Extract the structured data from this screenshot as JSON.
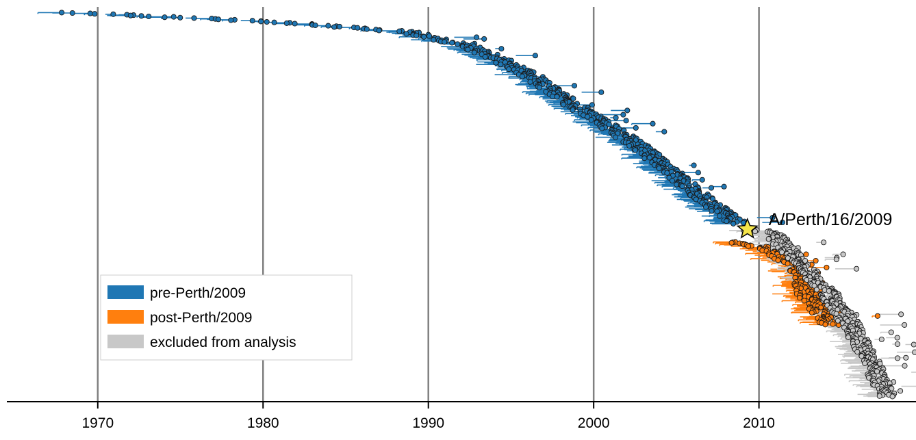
{
  "chart_data": {
    "type": "phylogenetic-tree",
    "xlim": [
      1964.5,
      2019.5
    ],
    "x_ticks": [
      1970,
      1980,
      1990,
      2000,
      2010
    ],
    "x_tick_labels": [
      "1970",
      "1980",
      "1990",
      "2000",
      "2010"
    ],
    "grid": "vertical",
    "legend_position": "lower-left",
    "legend": [
      {
        "name": "pre-Perth/2009",
        "color": "#1f77b4"
      },
      {
        "name": "post-Perth/2009",
        "color": "#ff7f0e"
      },
      {
        "name": "excluded from analysis",
        "color": "#c8c8c8"
      }
    ],
    "annotation": {
      "text": "A/Perth/16/2009",
      "x": 2009.3,
      "marker": "star",
      "color": "#f5e54a"
    },
    "series": [
      {
        "group": "pre-Perth/2009",
        "color": "#1f77b4",
        "trunk": [
          [
            1968.0,
            0.01
          ],
          [
            1980.0,
            0.04
          ],
          [
            1988.5,
            0.075
          ],
          [
            1992.5,
            0.13
          ],
          [
            1995.5,
            0.21
          ],
          [
            1998.5,
            0.32
          ],
          [
            2002.5,
            0.46
          ],
          [
            2006.0,
            0.62
          ],
          [
            2008.5,
            0.72
          ]
        ]
      },
      {
        "group": "post-Perth/2009",
        "color": "#ff7f0e",
        "trunk": [
          [
            2008.0,
            0.78
          ],
          [
            2010.0,
            0.8
          ],
          [
            2012.0,
            0.86
          ],
          [
            2012.5,
            0.95
          ],
          [
            2014.0,
            1.06
          ]
        ]
      },
      {
        "group": "excluded from analysis",
        "color": "#c8c8c8",
        "trunk": [
          [
            2009.0,
            0.74
          ],
          [
            2010.5,
            0.75
          ],
          [
            2014.0,
            0.96
          ],
          [
            2015.5,
            1.08
          ],
          [
            2017.5,
            1.3
          ]
        ]
      }
    ]
  }
}
